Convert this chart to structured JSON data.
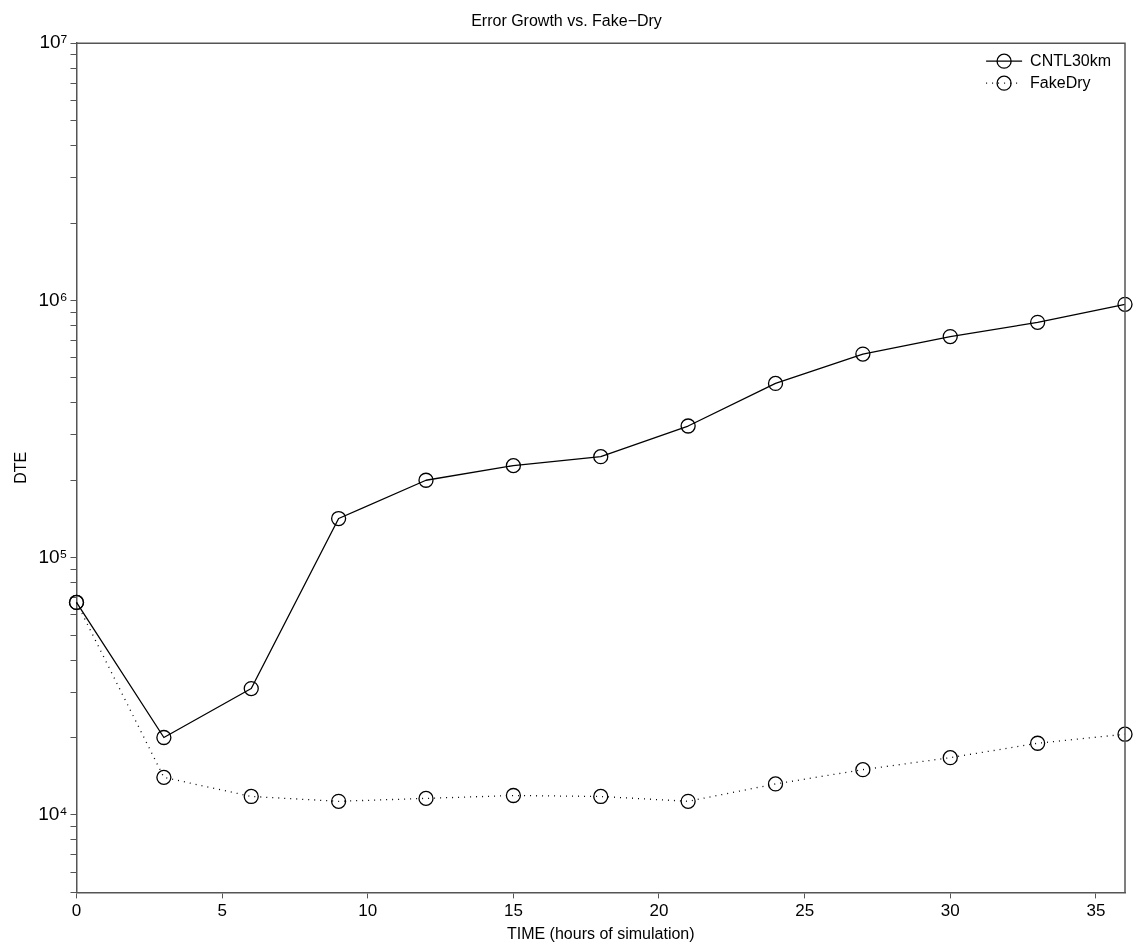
{
  "chart_data": {
    "type": "line",
    "title": "Error Growth vs. Fake−Dry",
    "xlabel": "TIME (hours of simulation)",
    "ylabel": "DTE",
    "x": [
      0,
      3,
      6,
      9,
      12,
      15,
      18,
      21,
      24,
      27,
      30,
      33,
      36
    ],
    "series": [
      {
        "name": "CNTL30km",
        "color": "#000000",
        "line_style": "solid",
        "values": [
          67000,
          20000,
          31000,
          142000,
          200000,
          228000,
          247000,
          325000,
          476000,
          619000,
          724000,
          822000,
          966000
        ]
      },
      {
        "name": "FakeDry",
        "color": "#000000",
        "line_style": "dotted",
        "values": [
          67000,
          14000,
          11800,
          11300,
          11600,
          11900,
          11800,
          11300,
          13200,
          15000,
          16700,
          19000,
          20600
        ]
      }
    ],
    "marker": "circle",
    "log": "y",
    "grid": false,
    "legend": "top right",
    "xlim": [
      0,
      36
    ],
    "xticks": [
      0,
      5,
      10,
      15,
      20,
      25,
      30,
      35
    ],
    "ylim": [
      5000,
      10000000
    ],
    "yticks": [
      {
        "value": 5000,
        "label": null
      },
      {
        "value": 6000,
        "label": null
      },
      {
        "value": 7000,
        "label": null
      },
      {
        "value": 8000,
        "label": null
      },
      {
        "value": 9000,
        "label": null
      },
      {
        "value": 10000,
        "label": "10⁴"
      },
      {
        "value": 20000,
        "label": null
      },
      {
        "value": 30000,
        "label": null
      },
      {
        "value": 40000,
        "label": null
      },
      {
        "value": 50000,
        "label": null
      },
      {
        "value": 60000,
        "label": null
      },
      {
        "value": 70000,
        "label": null
      },
      {
        "value": 80000,
        "label": null
      },
      {
        "value": 90000,
        "label": null
      },
      {
        "value": 100000,
        "label": "10⁵"
      },
      {
        "value": 200000,
        "label": null
      },
      {
        "value": 300000,
        "label": null
      },
      {
        "value": 400000,
        "label": null
      },
      {
        "value": 500000,
        "label": null
      },
      {
        "value": 600000,
        "label": null
      },
      {
        "value": 700000,
        "label": null
      },
      {
        "value": 800000,
        "label": null
      },
      {
        "value": 900000,
        "label": null
      },
      {
        "value": 1000000,
        "label": "10⁶"
      },
      {
        "value": 2000000,
        "label": null
      },
      {
        "value": 3000000,
        "label": null
      },
      {
        "value": 4000000,
        "label": null
      },
      {
        "value": 5000000,
        "label": null
      },
      {
        "value": 6000000,
        "label": null
      },
      {
        "value": 7000000,
        "label": null
      },
      {
        "value": 8000000,
        "label": null
      },
      {
        "value": 9000000,
        "label": null
      },
      {
        "value": 10000000,
        "label": "10⁷"
      }
    ]
  }
}
